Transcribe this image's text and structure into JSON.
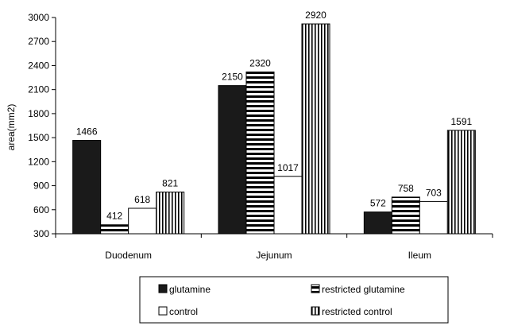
{
  "chart_data": {
    "type": "bar",
    "title": "",
    "xlabel": "",
    "ylabel": "area(mm2)",
    "ylim": [
      300,
      3000
    ],
    "yticks": [
      300,
      600,
      900,
      1200,
      1500,
      1800,
      2100,
      2400,
      2700,
      3000
    ],
    "grid": false,
    "legend_position": "bottom",
    "categories": [
      "Duodenum",
      "Jejunum",
      "Ileum"
    ],
    "series": [
      {
        "name": "glutamine",
        "values": [
          1466,
          2150,
          572
        ],
        "fill": "solid-black",
        "color": "#1a1a1a"
      },
      {
        "name": "restricted glutamine",
        "values": [
          412,
          2320,
          758
        ],
        "fill": "horizontal-stripes",
        "color": "#000000"
      },
      {
        "name": "control",
        "values": [
          618,
          1017,
          703
        ],
        "fill": "white",
        "color": "#ffffff"
      },
      {
        "name": "restricted control",
        "values": [
          821,
          2920,
          1591
        ],
        "fill": "vertical-stripes",
        "color": "#000000"
      }
    ]
  }
}
